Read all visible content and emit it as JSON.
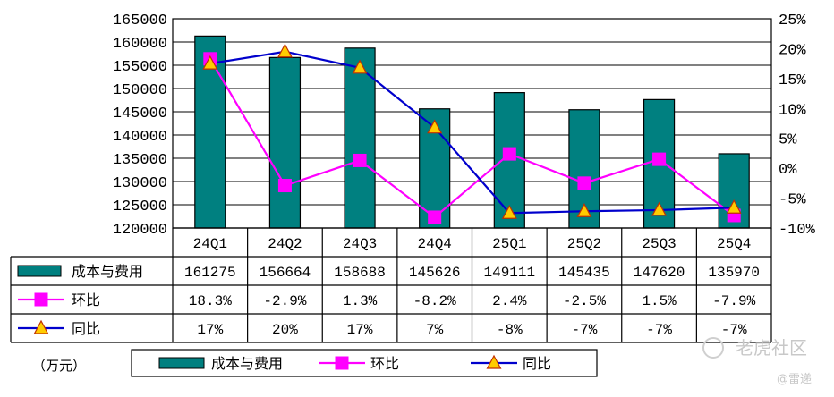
{
  "chart_data": {
    "type": "bar",
    "title": "",
    "unit_label": "（万元）",
    "categories": [
      "24Q1",
      "24Q2",
      "24Q3",
      "24Q4",
      "25Q1",
      "25Q2",
      "25Q3",
      "25Q4"
    ],
    "left_axis": {
      "ylim": [
        120000,
        165000
      ],
      "ticks": [
        "120000",
        "125000",
        "130000",
        "135000",
        "140000",
        "145000",
        "150000",
        "155000",
        "160000",
        "165000"
      ]
    },
    "right_axis": {
      "ylim": [
        -10,
        25
      ],
      "ticks": [
        "-10%",
        "-5%",
        "0%",
        "5%",
        "10%",
        "15%",
        "20%",
        "25%"
      ]
    },
    "series": [
      {
        "name": "成本与费用",
        "kind": "bar",
        "axis": "left",
        "color": "#008080",
        "values": [
          161275,
          156664,
          158688,
          145626,
          149111,
          145435,
          147620,
          135970
        ],
        "labels": [
          "161275",
          "156664",
          "158688",
          "145626",
          "149111",
          "145435",
          "147620",
          "135970"
        ]
      },
      {
        "name": "环比",
        "kind": "line",
        "axis": "right",
        "color": "#ff00ff",
        "marker": "square",
        "values": [
          18.3,
          -2.9,
          1.3,
          -8.2,
          2.4,
          -2.5,
          1.5,
          -7.9
        ],
        "labels": [
          "18.3%",
          "-2.9%",
          "1.3%",
          "-8.2%",
          "2.4%",
          "-2.5%",
          "1.5%",
          "-7.9%"
        ]
      },
      {
        "name": "同比",
        "kind": "line",
        "axis": "right",
        "color": "#0000cc",
        "marker": "triangle",
        "marker_color": "#ffcc00",
        "values": [
          17,
          20,
          17,
          7,
          -8,
          -7,
          -7,
          -7
        ],
        "plotted_values": [
          17.5,
          19.5,
          16.8,
          6.8,
          -7.5,
          -7.2,
          -7.0,
          -6.6
        ],
        "labels": [
          "17%",
          "20%",
          "17%",
          "7%",
          "-8%",
          "-7%",
          "-7%",
          "-7%"
        ]
      }
    ],
    "legend": {
      "placement": "bottom",
      "entries": [
        "成本与费用",
        "环比",
        "同比"
      ]
    }
  },
  "watermark": {
    "text": "老虎社区",
    "sub": "@雷递"
  }
}
